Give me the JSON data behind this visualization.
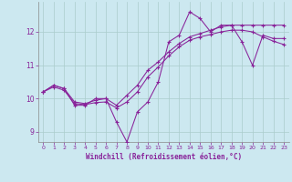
{
  "xlabel": "Windchill (Refroidissement éolien,°C)",
  "bg_color": "#cce8f0",
  "line_color": "#882299",
  "grid_color": "#aacccc",
  "xlim": [
    -0.5,
    23.5
  ],
  "ylim": [
    8.7,
    12.9
  ],
  "yticks": [
    9,
    10,
    11,
    12
  ],
  "xticks": [
    0,
    1,
    2,
    3,
    4,
    5,
    6,
    7,
    8,
    9,
    10,
    11,
    12,
    13,
    14,
    15,
    16,
    17,
    18,
    19,
    20,
    21,
    22,
    23
  ],
  "series": [
    [
      10.2,
      10.4,
      10.3,
      9.8,
      9.8,
      10.0,
      10.0,
      9.3,
      8.7,
      9.6,
      9.9,
      10.5,
      11.7,
      11.9,
      12.6,
      12.4,
      12.0,
      12.2,
      12.2,
      11.7,
      11.0,
      11.9,
      11.8,
      11.8
    ],
    [
      10.2,
      10.4,
      10.3,
      9.9,
      9.85,
      9.95,
      10.0,
      9.8,
      10.1,
      10.4,
      10.85,
      11.1,
      11.4,
      11.65,
      11.85,
      11.95,
      12.05,
      12.15,
      12.2,
      12.2,
      12.2,
      12.2,
      12.2,
      12.2
    ],
    [
      10.2,
      10.35,
      10.25,
      9.85,
      9.82,
      9.88,
      9.9,
      9.72,
      9.9,
      10.2,
      10.65,
      10.95,
      11.28,
      11.55,
      11.75,
      11.85,
      11.92,
      12.0,
      12.05,
      12.05,
      12.0,
      11.85,
      11.72,
      11.62
    ]
  ]
}
